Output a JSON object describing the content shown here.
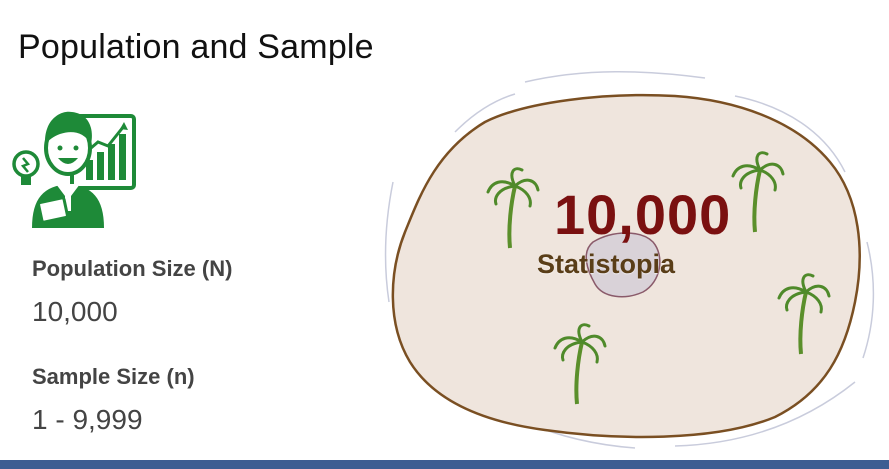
{
  "slide": {
    "title": "Population and Sample",
    "population": {
      "label": "Population Size (N)",
      "value": "10,000"
    },
    "sample": {
      "label": "Sample Size (n)",
      "value": "1 - 9,999"
    },
    "island": {
      "count": "10,000",
      "name": "Statistopia"
    },
    "colors": {
      "accent_green": "#1e8a38",
      "number_red": "#7a1010",
      "island_fill": "#efe5dd",
      "island_border": "#7a4f22",
      "bar_blue": "#3d5d92"
    },
    "icons": [
      "teacher-icon",
      "lightbulb-icon",
      "chart-board-icon",
      "palm-tree-icon"
    ]
  }
}
